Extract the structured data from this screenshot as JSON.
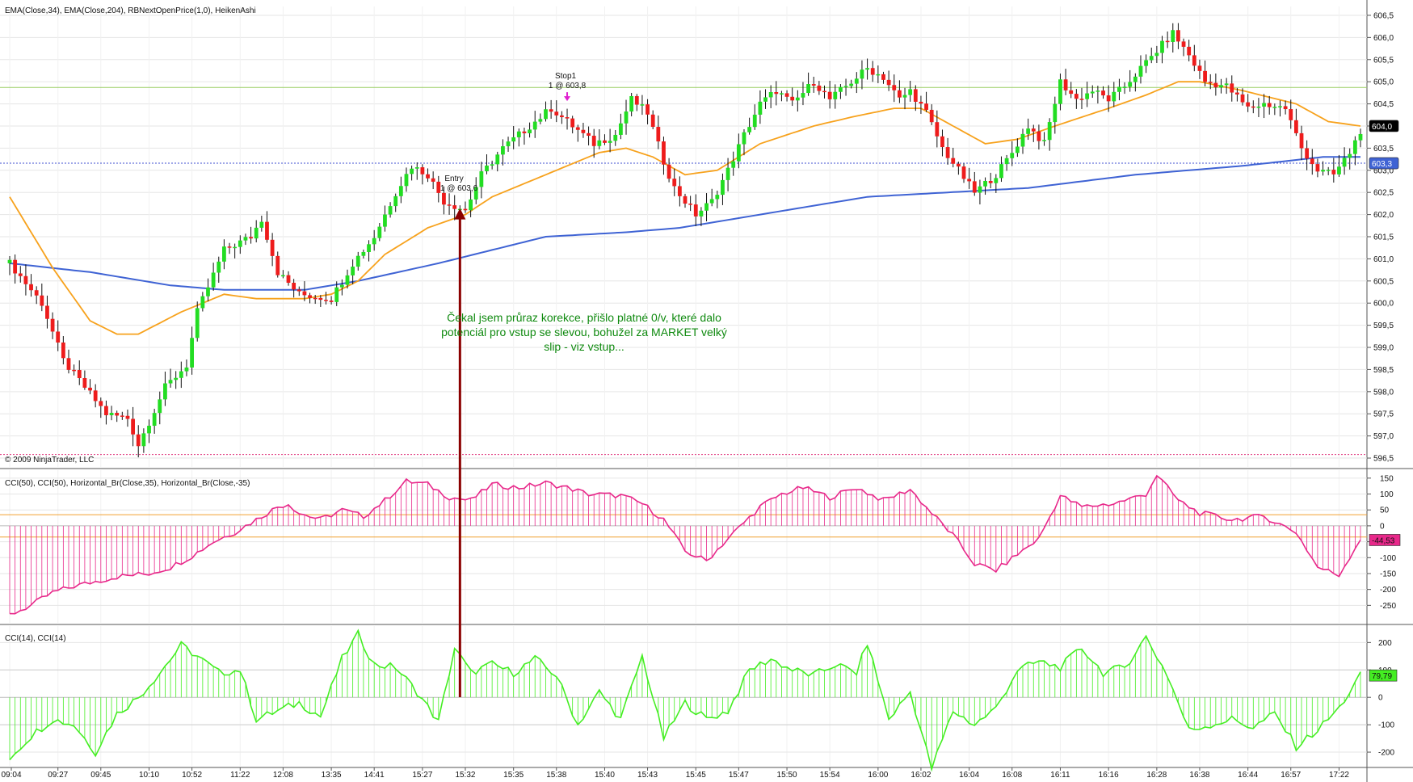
{
  "chart_data": [
    {
      "type": "candlestick",
      "name": "price-panel",
      "legend_text": "EMA(Close,34), EMA(Close,204), RBNextOpenPrice(1,0), HeikenAshi",
      "copyright": "© 2009 NinjaTrader, LLC",
      "ylim": [
        596.3,
        606.7
      ],
      "y_ticks": [
        596.5,
        597.0,
        597.5,
        598.0,
        598.5,
        599.0,
        599.5,
        600.0,
        600.5,
        601.0,
        601.5,
        602.0,
        602.5,
        603.0,
        603.5,
        604.0,
        604.5,
        605.0,
        605.5,
        606.0,
        606.5
      ],
      "y_tick_labels": [
        "596,5",
        "597,0",
        "597,5",
        "598,0",
        "598,5",
        "599,0",
        "599,5",
        "600,0",
        "600,5",
        "601,0",
        "601,5",
        "602,0",
        "602,5",
        "603,0",
        "603,5",
        "604,0",
        "604,5",
        "605,0",
        "605,5",
        "606,0",
        "606,5"
      ],
      "close_path": [
        [
          0,
          600.9
        ],
        [
          6,
          600.0
        ],
        [
          10,
          598.7
        ],
        [
          18,
          597.5
        ],
        [
          22,
          597.4
        ],
        [
          24,
          596.8
        ],
        [
          29,
          598.1
        ],
        [
          33,
          598.6
        ],
        [
          35,
          599.8
        ],
        [
          40,
          601.2
        ],
        [
          45,
          601.5
        ],
        [
          47,
          601.9
        ],
        [
          50,
          600.7
        ],
        [
          54,
          600.2
        ],
        [
          60,
          600.1
        ],
        [
          64,
          600.9
        ],
        [
          68,
          601.5
        ],
        [
          72,
          602.5
        ],
        [
          75,
          603.1
        ],
        [
          78,
          602.9
        ],
        [
          81,
          602.3
        ],
        [
          85,
          602.1
        ],
        [
          88,
          602.9
        ],
        [
          92,
          603.5
        ],
        [
          97,
          604.0
        ],
        [
          101,
          604.4
        ],
        [
          104,
          604.1
        ],
        [
          109,
          603.6
        ],
        [
          113,
          603.8
        ],
        [
          116,
          604.6
        ],
        [
          119,
          604.3
        ],
        [
          122,
          603.2
        ],
        [
          124,
          602.6
        ],
        [
          128,
          602.0
        ],
        [
          131,
          602.3
        ],
        [
          134,
          603.0
        ],
        [
          137,
          603.8
        ],
        [
          140,
          604.5
        ],
        [
          143,
          604.8
        ],
        [
          146,
          604.5
        ],
        [
          150,
          605.0
        ],
        [
          153,
          604.6
        ],
        [
          157,
          605.0
        ],
        [
          160,
          605.3
        ],
        [
          163,
          605.1
        ],
        [
          166,
          604.6
        ],
        [
          168,
          604.8
        ],
        [
          171,
          604.3
        ],
        [
          174,
          603.5
        ],
        [
          177,
          603.0
        ],
        [
          180,
          602.5
        ],
        [
          184,
          602.9
        ],
        [
          187,
          603.4
        ],
        [
          190,
          604.0
        ],
        [
          193,
          603.6
        ],
        [
          196,
          605.0
        ],
        [
          199,
          604.6
        ],
        [
          202,
          604.8
        ],
        [
          205,
          604.6
        ],
        [
          208,
          604.9
        ],
        [
          211,
          605.3
        ],
        [
          214,
          605.7
        ],
        [
          217,
          606.1
        ],
        [
          220,
          605.6
        ],
        [
          223,
          605.0
        ],
        [
          227,
          604.9
        ],
        [
          231,
          604.4
        ],
        [
          234,
          604.5
        ],
        [
          238,
          604.4
        ],
        [
          241,
          603.5
        ],
        [
          244,
          603.0
        ],
        [
          247,
          602.9
        ],
        [
          250,
          603.4
        ],
        [
          252,
          603.9
        ]
      ],
      "ema34_path": [
        [
          0,
          602.4
        ],
        [
          8,
          600.8
        ],
        [
          15,
          599.6
        ],
        [
          20,
          599.3
        ],
        [
          24,
          599.3
        ],
        [
          32,
          599.8
        ],
        [
          40,
          600.2
        ],
        [
          46,
          600.1
        ],
        [
          50,
          600.1
        ],
        [
          55,
          600.1
        ],
        [
          60,
          600.2
        ],
        [
          65,
          600.5
        ],
        [
          70,
          601.1
        ],
        [
          78,
          601.7
        ],
        [
          85,
          602.0
        ],
        [
          90,
          602.4
        ],
        [
          100,
          602.9
        ],
        [
          110,
          603.4
        ],
        [
          115,
          603.5
        ],
        [
          120,
          603.3
        ],
        [
          126,
          602.9
        ],
        [
          132,
          603.0
        ],
        [
          140,
          603.6
        ],
        [
          150,
          604.0
        ],
        [
          157,
          604.2
        ],
        [
          165,
          604.4
        ],
        [
          170,
          604.4
        ],
        [
          176,
          604.0
        ],
        [
          182,
          603.6
        ],
        [
          188,
          603.7
        ],
        [
          195,
          604.0
        ],
        [
          205,
          604.4
        ],
        [
          212,
          604.7
        ],
        [
          218,
          605.0
        ],
        [
          222,
          605.0
        ],
        [
          230,
          604.8
        ],
        [
          240,
          604.5
        ],
        [
          246,
          604.1
        ],
        [
          252,
          604.0
        ]
      ],
      "ema204_path": [
        [
          0,
          600.9
        ],
        [
          15,
          600.7
        ],
        [
          30,
          600.4
        ],
        [
          40,
          600.3
        ],
        [
          55,
          600.3
        ],
        [
          65,
          600.5
        ],
        [
          80,
          600.9
        ],
        [
          100,
          601.5
        ],
        [
          115,
          601.6
        ],
        [
          125,
          601.7
        ],
        [
          140,
          602.0
        ],
        [
          160,
          602.4
        ],
        [
          175,
          602.5
        ],
        [
          190,
          602.6
        ],
        [
          210,
          602.9
        ],
        [
          230,
          603.1
        ],
        [
          245,
          603.3
        ],
        [
          252,
          603.3
        ]
      ],
      "level_lines": [
        {
          "name": "open-price-line",
          "value": 603.16,
          "color": "#3f4fd0"
        },
        {
          "name": "upper-level-line",
          "value": 604.87,
          "color": "#9acd65"
        },
        {
          "name": "lower-level-line",
          "value": 596.58,
          "color": "#e0307a"
        }
      ],
      "current_price_label": "604,0",
      "current_price": 604.0,
      "open_price_label": "603,3",
      "markers": [
        {
          "name": "entry-label",
          "text": "Entry",
          "qty_text": "1 @ 603,6",
          "bar": 82,
          "price": 602.5
        },
        {
          "name": "stop-label",
          "text": "Stop1",
          "qty_text": "1 @ 603,8",
          "bar": 104,
          "price": 604.8
        }
      ],
      "annotation_lines": [
        "Čekal jsem průraz korekce, přišlo platné 0/v, které dalo",
        "potenciál pro vstup se slevou, bohužel za MARKET velký",
        "slip - viz vstup..."
      ]
    },
    {
      "type": "area",
      "name": "cci50-panel",
      "legend_text": "CCI(50), CCI(50), Horizontal_Br(Close,35), Horizontal_Br(Close,-35)",
      "ylim": [
        -305,
        175
      ],
      "y_ticks": [
        -250,
        -200,
        -150,
        -100,
        -50,
        0,
        50,
        100,
        150
      ],
      "y_tick_labels": [
        "-250",
        "-200",
        "-150",
        "-100",
        "-50",
        "0",
        "50",
        "100",
        "150"
      ],
      "threshold_levels": [
        35,
        -35
      ],
      "current_value_label": "-44,53",
      "current_value": -44.53,
      "values_path": [
        [
          0,
          -280
        ],
        [
          4,
          -250
        ],
        [
          8,
          -210
        ],
        [
          12,
          -190
        ],
        [
          16,
          -175
        ],
        [
          20,
          -160
        ],
        [
          26,
          -150
        ],
        [
          30,
          -130
        ],
        [
          34,
          -95
        ],
        [
          38,
          -50
        ],
        [
          42,
          -20
        ],
        [
          46,
          20
        ],
        [
          50,
          60
        ],
        [
          52,
          70
        ],
        [
          54,
          40
        ],
        [
          58,
          20
        ],
        [
          62,
          50
        ],
        [
          66,
          30
        ],
        [
          70,
          80
        ],
        [
          74,
          140
        ],
        [
          78,
          130
        ],
        [
          82,
          90
        ],
        [
          86,
          80
        ],
        [
          90,
          130
        ],
        [
          95,
          120
        ],
        [
          100,
          135
        ],
        [
          104,
          120
        ],
        [
          108,
          100
        ],
        [
          114,
          95
        ],
        [
          118,
          70
        ],
        [
          122,
          20
        ],
        [
          126,
          -80
        ],
        [
          130,
          -110
        ],
        [
          134,
          -40
        ],
        [
          140,
          60
        ],
        [
          144,
          100
        ],
        [
          148,
          120
        ],
        [
          153,
          90
        ],
        [
          158,
          120
        ],
        [
          163,
          80
        ],
        [
          168,
          115
        ],
        [
          172,
          40
        ],
        [
          176,
          -30
        ],
        [
          180,
          -120
        ],
        [
          184,
          -140
        ],
        [
          188,
          -90
        ],
        [
          192,
          -40
        ],
        [
          196,
          95
        ],
        [
          200,
          60
        ],
        [
          206,
          70
        ],
        [
          212,
          100
        ],
        [
          214,
          160
        ],
        [
          218,
          80
        ],
        [
          222,
          40
        ],
        [
          228,
          20
        ],
        [
          234,
          30
        ],
        [
          240,
          -20
        ],
        [
          244,
          -130
        ],
        [
          248,
          -155
        ],
        [
          252,
          -40
        ]
      ]
    },
    {
      "type": "area",
      "name": "cci14-panel",
      "legend_text": "CCI(14), CCI(14)",
      "ylim": [
        -250,
        260
      ],
      "y_ticks": [
        -200,
        -100,
        0,
        100,
        200
      ],
      "y_tick_labels": [
        "-200",
        "-100",
        "0",
        "100",
        "200"
      ],
      "threshold_levels": [
        100,
        -100
      ],
      "current_value_label": "79,79",
      "current_value": 79.79,
      "values_path": [
        [
          0,
          -220
        ],
        [
          4,
          -140
        ],
        [
          8,
          -80
        ],
        [
          12,
          -100
        ],
        [
          16,
          -200
        ],
        [
          20,
          -60
        ],
        [
          24,
          0
        ],
        [
          28,
          90
        ],
        [
          32,
          190
        ],
        [
          35,
          150
        ],
        [
          39,
          90
        ],
        [
          43,
          100
        ],
        [
          46,
          -80
        ],
        [
          50,
          -50
        ],
        [
          54,
          -20
        ],
        [
          58,
          -70
        ],
        [
          62,
          140
        ],
        [
          65,
          230
        ],
        [
          68,
          120
        ],
        [
          72,
          110
        ],
        [
          76,
          20
        ],
        [
          80,
          -90
        ],
        [
          83,
          180
        ],
        [
          86,
          90
        ],
        [
          90,
          120
        ],
        [
          94,
          90
        ],
        [
          98,
          140
        ],
        [
          102,
          80
        ],
        [
          106,
          -100
        ],
        [
          110,
          20
        ],
        [
          114,
          -80
        ],
        [
          118,
          150
        ],
        [
          122,
          -150
        ],
        [
          126,
          -20
        ],
        [
          130,
          -80
        ],
        [
          134,
          -50
        ],
        [
          138,
          100
        ],
        [
          142,
          140
        ],
        [
          146,
          100
        ],
        [
          150,
          80
        ],
        [
          154,
          120
        ],
        [
          158,
          90
        ],
        [
          160,
          200
        ],
        [
          164,
          -80
        ],
        [
          168,
          20
        ],
        [
          172,
          -260
        ],
        [
          176,
          -50
        ],
        [
          180,
          -100
        ],
        [
          184,
          -40
        ],
        [
          188,
          100
        ],
        [
          192,
          130
        ],
        [
          196,
          110
        ],
        [
          200,
          180
        ],
        [
          204,
          90
        ],
        [
          208,
          110
        ],
        [
          212,
          220
        ],
        [
          216,
          80
        ],
        [
          220,
          -120
        ],
        [
          224,
          -100
        ],
        [
          228,
          -80
        ],
        [
          232,
          -110
        ],
        [
          236,
          -60
        ],
        [
          240,
          -180
        ],
        [
          244,
          -120
        ],
        [
          248,
          -40
        ],
        [
          252,
          80
        ]
      ]
    }
  ],
  "time_axis": {
    "bars": 253,
    "labels": [
      "09:04",
      "09:27",
      "09:45",
      "10:10",
      "10:52",
      "11:22",
      "12:08",
      "13:35",
      "14:41",
      "15:27",
      "15:32",
      "15:35",
      "15:38",
      "15:40",
      "15:43",
      "15:45",
      "15:47",
      "15:50",
      "15:54",
      "16:00",
      "16:02",
      "16:04",
      "16:08",
      "16:11",
      "16:16",
      "16:28",
      "16:38",
      "16:44",
      "16:57",
      "17:22"
    ],
    "label_bars": [
      0,
      9,
      17,
      26,
      34,
      43,
      51,
      60,
      68,
      77,
      85,
      94,
      102,
      111,
      119,
      128,
      136,
      145,
      153,
      162,
      170,
      179,
      187,
      196,
      205,
      214,
      222,
      231,
      239,
      248
    ]
  },
  "colors": {
    "bull": "#22dd22",
    "bear": "#ee1c1c",
    "ema34": "#f7a21d",
    "ema204": "#3f63d4",
    "cci50": "#e8288a",
    "cci50_threshold": "#f0a030",
    "cci14": "#44ee22",
    "entry_arrow": "#8b0000",
    "annotation": "#108a10"
  }
}
